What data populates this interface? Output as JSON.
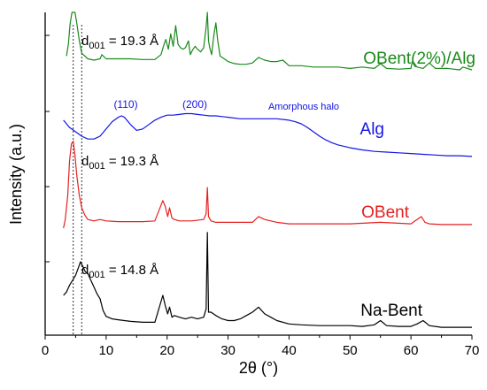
{
  "chart_data": {
    "type": "line",
    "xlabel": "2θ (°)",
    "ylabel": "Intensity (a.u.)",
    "xlim": [
      0,
      70
    ],
    "xticks": [
      "0",
      "10",
      "20",
      "30",
      "40",
      "50",
      "60",
      "70"
    ],
    "yticks_labeled": false,
    "grid": false,
    "legend": "none (series labelled inline)",
    "reference_lines": [
      4.6,
      6.0
    ],
    "series": [
      {
        "name": "OBent(2%)/Alg",
        "color": "#1a8a1a",
        "x": [
          3.5,
          3.8,
          4.1,
          4.4,
          4.6,
          4.9,
          5.2,
          5.6,
          6.0,
          7,
          8,
          9,
          9.3,
          10,
          12,
          14,
          16,
          18,
          19,
          19.5,
          19.8,
          20.2,
          20.6,
          21.0,
          21.4,
          21.8,
          22.2,
          22.6,
          23,
          23.5,
          23.8,
          24.2,
          24.6,
          25,
          25.5,
          26,
          26.4,
          26.6,
          26.8,
          27.0,
          27.3,
          27.7,
          28.0,
          28.3,
          28.7,
          29.2,
          30,
          31,
          32,
          33,
          34,
          35,
          35.5,
          36,
          37,
          38,
          39,
          40,
          42,
          44,
          46,
          48,
          50,
          52,
          54,
          55,
          56,
          58,
          60,
          60.2,
          60.5,
          61,
          62,
          63,
          64,
          66,
          68,
          68.5,
          70
        ],
        "y": [
          38,
          55,
          85,
          108,
          113,
          106,
          85,
          60,
          42,
          34,
          32,
          34,
          40,
          34,
          34,
          34,
          33,
          33,
          40,
          55,
          62,
          48,
          70,
          52,
          82,
          55,
          50,
          48,
          50,
          60,
          40,
          47,
          52,
          48,
          44,
          50,
          80,
          155,
          60,
          50,
          40,
          70,
          86,
          60,
          38,
          35,
          30,
          27,
          26,
          26,
          28,
          36,
          34,
          32,
          30,
          30,
          32,
          24,
          24,
          22,
          22,
          22,
          20,
          22,
          20,
          27,
          20,
          19,
          20,
          30,
          28,
          22,
          20,
          28,
          20,
          20,
          18,
          22,
          18
        ]
      },
      {
        "name": "Alg",
        "color": "#1414e6",
        "x": [
          3.0,
          4,
          5,
          6,
          7,
          8,
          9,
          10,
          11,
          12,
          12.5,
          13,
          14,
          15,
          16,
          17,
          18,
          19,
          20,
          21,
          22,
          23,
          24,
          25,
          26,
          27,
          28,
          29,
          30,
          32,
          34,
          36,
          38,
          40,
          41,
          42,
          43,
          44,
          45,
          46,
          47,
          48,
          50,
          52,
          54,
          56,
          58,
          60,
          62,
          64,
          66,
          68,
          70
        ],
        "y": [
          44,
          34,
          28,
          22,
          18,
          18,
          22,
          32,
          42,
          48,
          50,
          48,
          38,
          30,
          32,
          38,
          44,
          48,
          51,
          51,
          52,
          53,
          53,
          52,
          51,
          50,
          50,
          49,
          48,
          46,
          46,
          46,
          46,
          44,
          42,
          39,
          34,
          28,
          22,
          17,
          13,
          10,
          6,
          3,
          1,
          0,
          -1,
          -2,
          -3,
          -4,
          -5,
          -5,
          -6
        ]
      },
      {
        "name": "OBent",
        "color": "#e62020",
        "x": [
          3.0,
          3.3,
          3.7,
          4.0,
          4.3,
          4.6,
          4.9,
          5.2,
          5.6,
          6.0,
          6.5,
          7,
          8,
          9,
          10,
          12,
          14,
          16,
          18,
          19.3,
          19.7,
          20.1,
          20.4,
          20.8,
          21.2,
          22,
          24,
          26,
          26.4,
          26.6,
          26.8,
          27.2,
          28,
          30,
          32,
          34,
          35,
          36,
          38,
          40,
          45,
          50,
          55,
          60,
          61,
          61.7,
          62.3,
          63,
          65,
          68,
          70
        ],
        "y": [
          0,
          12,
          45,
          92,
          116,
          120,
          100,
          72,
          45,
          28,
          18,
          12,
          10,
          12,
          10,
          9,
          9,
          9,
          10,
          38,
          30,
          16,
          28,
          14,
          12,
          10,
          10,
          12,
          20,
          56,
          16,
          10,
          8,
          8,
          8,
          8,
          16,
          12,
          8,
          6,
          6,
          6,
          8,
          6,
          12,
          16,
          8,
          6,
          5,
          5,
          5
        ]
      },
      {
        "name": "Na-Bent",
        "color": "#000000",
        "x": [
          3.0,
          3.5,
          4,
          4.5,
          5,
          5.5,
          5.8,
          6.2,
          6.6,
          7,
          7.5,
          8,
          8.5,
          9,
          9.5,
          10,
          11,
          12,
          13,
          14,
          16,
          18,
          19.3,
          19.7,
          20.1,
          20.4,
          20.8,
          21.2,
          22,
          23,
          24,
          25,
          26,
          26.4,
          26.6,
          26.8,
          27.2,
          28,
          29,
          30,
          31,
          32,
          33,
          34,
          35,
          36,
          37,
          38,
          40,
          42,
          45,
          48,
          50,
          52,
          54,
          55,
          56,
          58,
          60,
          61,
          62,
          63,
          65,
          68,
          70
        ],
        "y": [
          40,
          44,
          52,
          58,
          64,
          74,
          80,
          74,
          68,
          66,
          58,
          50,
          42,
          36,
          22,
          15,
          12,
          11,
          10,
          9,
          8,
          8,
          40,
          28,
          18,
          26,
          14,
          16,
          14,
          12,
          14,
          12,
          14,
          24,
          115,
          20,
          20,
          16,
          12,
          10,
          10,
          12,
          16,
          20,
          26,
          18,
          14,
          10,
          6,
          5,
          4,
          4,
          4,
          3,
          5,
          10,
          4,
          3,
          3,
          6,
          10,
          4,
          2,
          2,
          2
        ]
      }
    ],
    "annotations": {
      "d_top": {
        "main": "d",
        "sub": "001",
        "rest": " = 19.3 Å"
      },
      "d_mid": {
        "main": "d",
        "sub": "001",
        "rest": " = 19.3 Å"
      },
      "d_bot": {
        "main": "d",
        "sub": "001",
        "rest": " = 14.8 Å"
      },
      "peak_110": "(110)",
      "peak_200": "(200)",
      "halo": "Amorphous halo"
    }
  }
}
